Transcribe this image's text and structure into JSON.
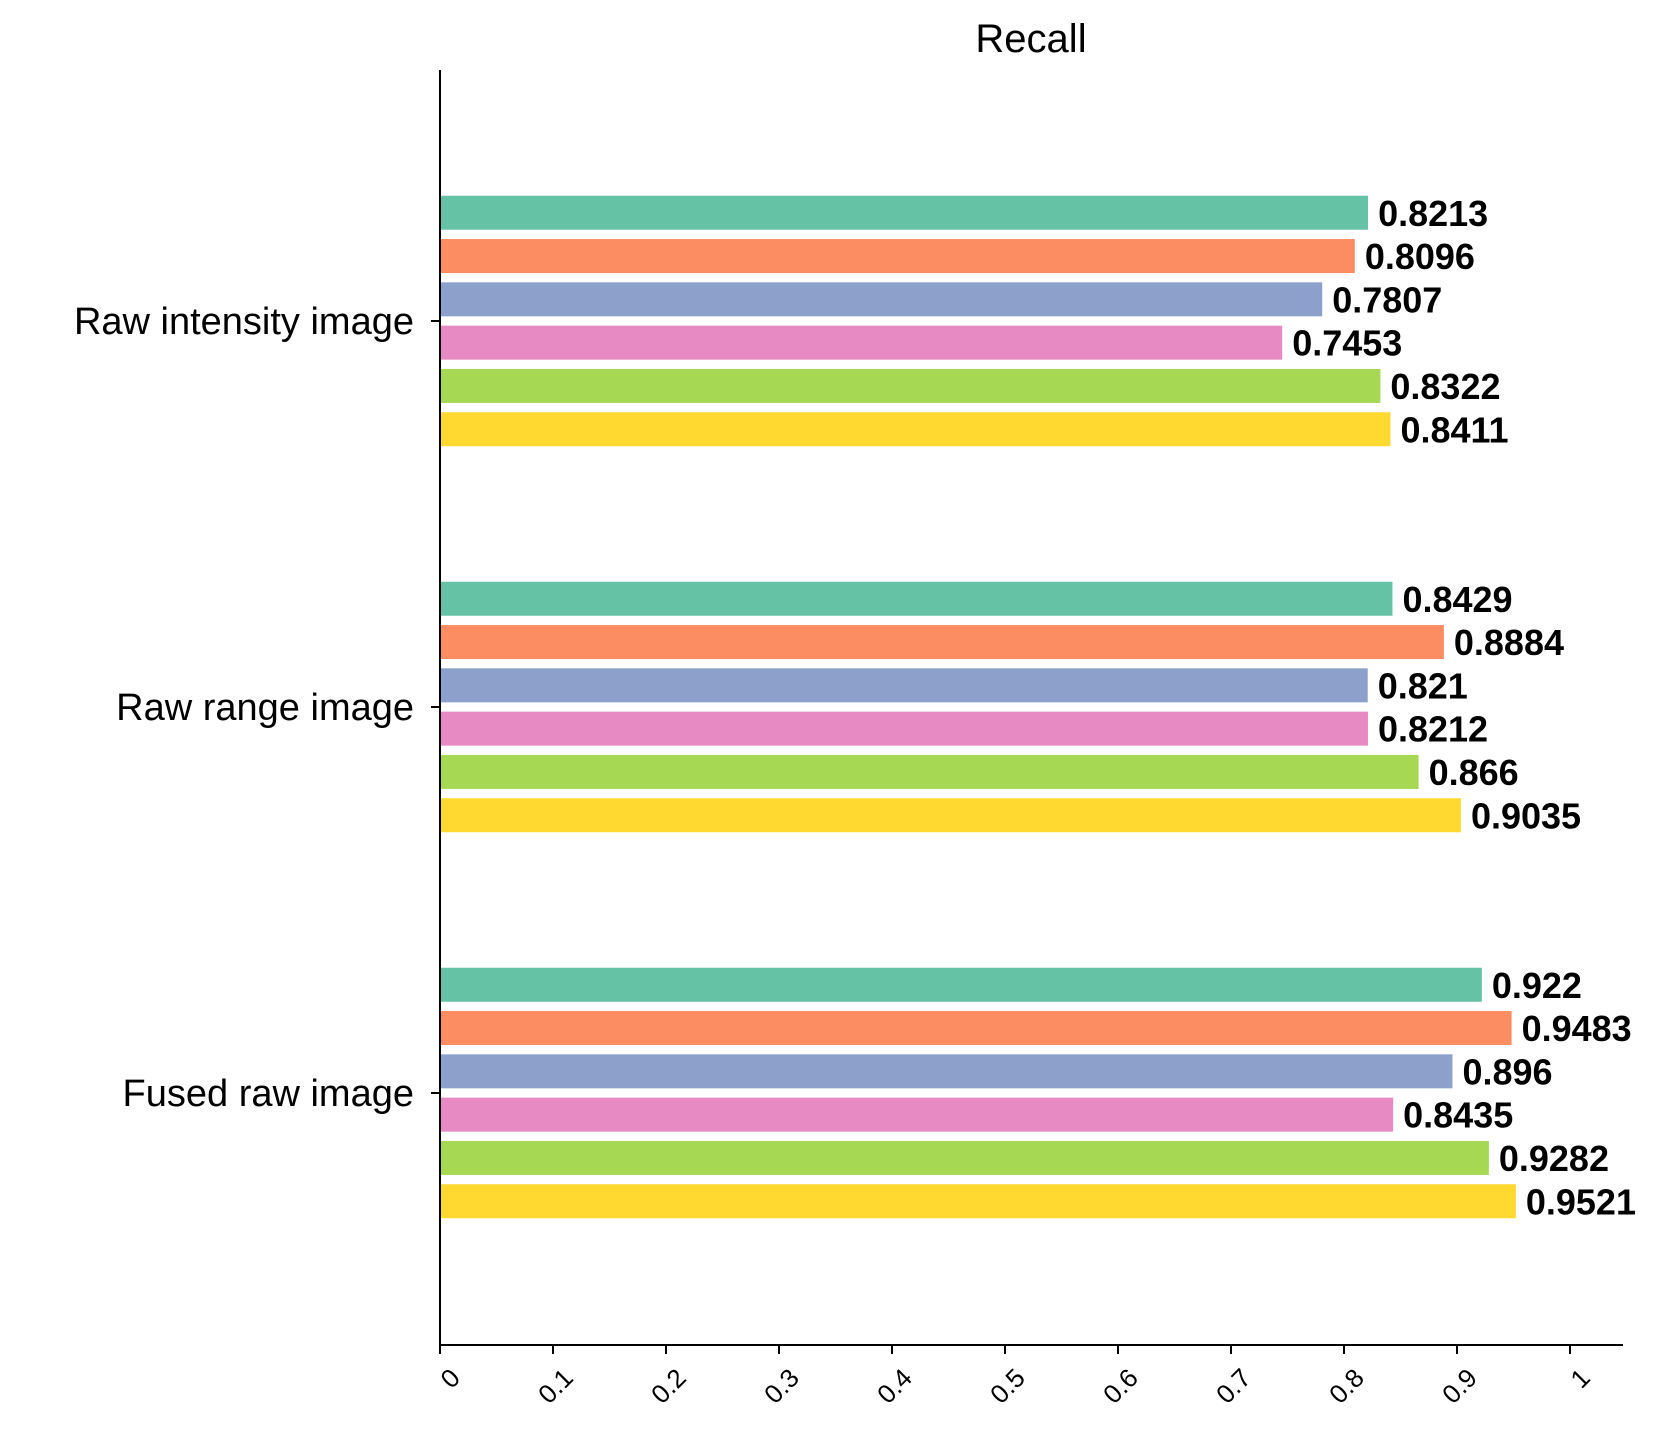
{
  "chart_data": {
    "type": "bar",
    "orientation": "horizontal",
    "title": "Recall",
    "xlabel": "",
    "ylabel": "",
    "xlim": [
      0,
      1.05
    ],
    "xticks": [
      0,
      0.1,
      0.2,
      0.3,
      0.4,
      0.5,
      0.6,
      0.7,
      0.8,
      0.9,
      1
    ],
    "xtick_labels": [
      "0",
      "0.1",
      "0.2",
      "0.3",
      "0.4",
      "0.5",
      "0.6",
      "0.7",
      "0.8",
      "0.9",
      "1"
    ],
    "grid": false,
    "legend": "none",
    "categories": [
      "Raw intensity image",
      "Raw range image",
      "Fused raw image"
    ],
    "series": [
      {
        "color": "#66c2a5",
        "values": [
          0.8213,
          0.8429,
          0.922
        ],
        "labels": [
          "0.8213",
          "0.8429",
          "0.922"
        ]
      },
      {
        "color": "#fc8d62",
        "values": [
          0.8096,
          0.8884,
          0.9483
        ],
        "labels": [
          "0.8096",
          "0.8884",
          "0.9483"
        ]
      },
      {
        "color": "#8da0cb",
        "values": [
          0.7807,
          0.821,
          0.896
        ],
        "labels": [
          "0.7807",
          "0.821",
          "0.896"
        ]
      },
      {
        "color": "#e78ac3",
        "values": [
          0.7453,
          0.8212,
          0.8435
        ],
        "labels": [
          "0.7453",
          "0.8212",
          "0.8435"
        ]
      },
      {
        "color": "#a6d854",
        "values": [
          0.8322,
          0.866,
          0.9282
        ],
        "labels": [
          "0.8322",
          "0.866",
          "0.9282"
        ]
      },
      {
        "color": "#ffd92f",
        "values": [
          0.8411,
          0.9035,
          0.9521
        ],
        "labels": [
          "0.8411",
          "0.9035",
          "0.9521"
        ]
      }
    ]
  }
}
